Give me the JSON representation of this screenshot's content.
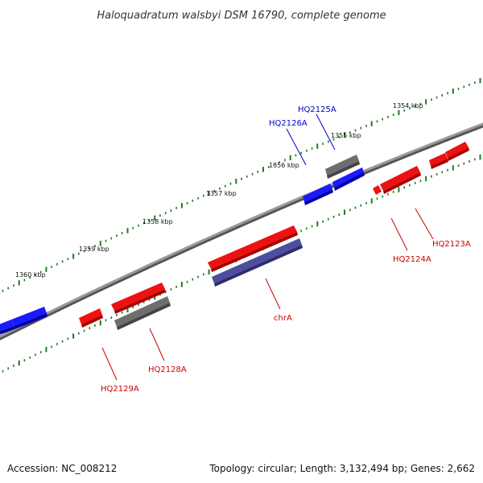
{
  "title": "Haloquadratum walsbyi DSM 16790, complete genome",
  "footer": {
    "accession": "Accession: NC_008212",
    "summary": "Topology: circular; Length: 3,132,494 bp; Genes: 2,662"
  },
  "colors": {
    "backbone": "#8a8a8a",
    "tick": "#1f7a1f",
    "forward_gene": "#0000ee",
    "reverse_gene": "#ee0000",
    "other_gene": "#666666",
    "rna_feature": "#4b4b99",
    "forward_label": "#0000cc",
    "reverse_label": "#cc0000"
  },
  "kbp_labels": [
    {
      "text": "1354 kbp"
    },
    {
      "text": "1355 kbp"
    },
    {
      "text": "1356 kbp"
    },
    {
      "text": "1357 kbp"
    },
    {
      "text": "1358 kbp"
    },
    {
      "text": "1359 kbp"
    },
    {
      "text": "1360 kbp"
    }
  ],
  "gene_labels": [
    {
      "text": "HQ2125A",
      "strand": "forward"
    },
    {
      "text": "HQ2126A",
      "strand": "forward"
    },
    {
      "text": "HQ2123A",
      "strand": "reverse"
    },
    {
      "text": "HQ2124A",
      "strand": "reverse"
    },
    {
      "text": "chrA",
      "strand": "reverse"
    },
    {
      "text": "HQ2128A",
      "strand": "reverse"
    },
    {
      "text": "HQ2129A",
      "strand": "reverse"
    }
  ]
}
